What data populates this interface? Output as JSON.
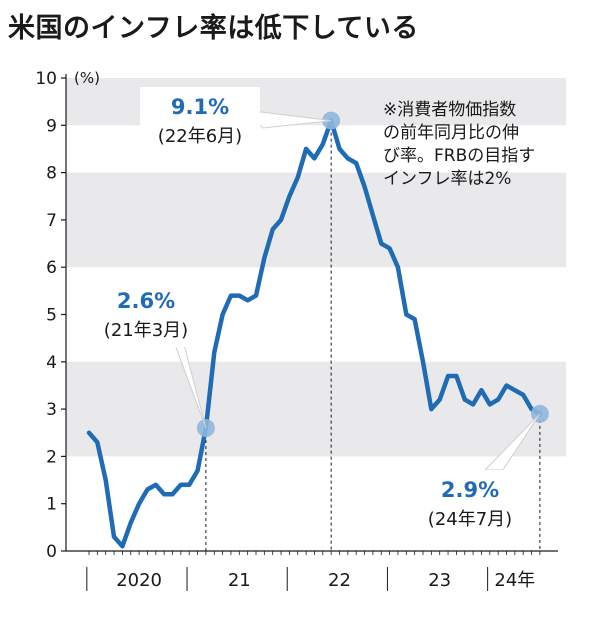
{
  "title": "米国のインフレ率は低下している",
  "unit_label": "(%)",
  "note_lines": [
    "※消費者物価指数",
    "の前年同月比の伸",
    "び率。FRBの目指す",
    "インフレ率は2%"
  ],
  "colors": {
    "line": "#1f6bb5",
    "band": "#e9e9eb",
    "marker": "#8fb6de"
  },
  "chart_data": {
    "type": "line",
    "title": "米国のインフレ率は低下している",
    "ylabel": "(%)",
    "ylim": [
      0,
      10
    ],
    "yticks": [
      "0",
      "1",
      "2",
      "3",
      "4",
      "5",
      "6",
      "7",
      "8",
      "9",
      "10"
    ],
    "xticks": [
      "2020",
      "21",
      "22",
      "23",
      "24年"
    ],
    "x_start": "2020-01",
    "series": [
      {
        "values": [
          2.5,
          2.3,
          1.5,
          0.3,
          0.1,
          0.6,
          1.0,
          1.3,
          1.4,
          1.2,
          1.2,
          1.4,
          1.4,
          1.7,
          2.6,
          4.2,
          5.0,
          5.4,
          5.4,
          5.3,
          5.4,
          6.2,
          6.8,
          7.0,
          7.5,
          7.9,
          8.5,
          8.3,
          8.6,
          9.1,
          8.5,
          8.3,
          8.2,
          7.7,
          7.1,
          6.5,
          6.4,
          6.0,
          5.0,
          4.9,
          4.0,
          3.0,
          3.2,
          3.7,
          3.7,
          3.2,
          3.1,
          3.4,
          3.1,
          3.2,
          3.5,
          3.4,
          3.3,
          3.0,
          2.9
        ]
      }
    ],
    "annotations": [
      {
        "value_label": "9.1%",
        "date_label": "(22年6月)",
        "month_index": 29,
        "value": 9.1
      },
      {
        "value_label": "2.6%",
        "date_label": "(21年3月)",
        "month_index": 14,
        "value": 2.6
      },
      {
        "value_label": "2.9%",
        "date_label": "(24年7月)",
        "month_index": 54,
        "value": 2.9
      }
    ],
    "grid": "alternating horizontal bands"
  }
}
